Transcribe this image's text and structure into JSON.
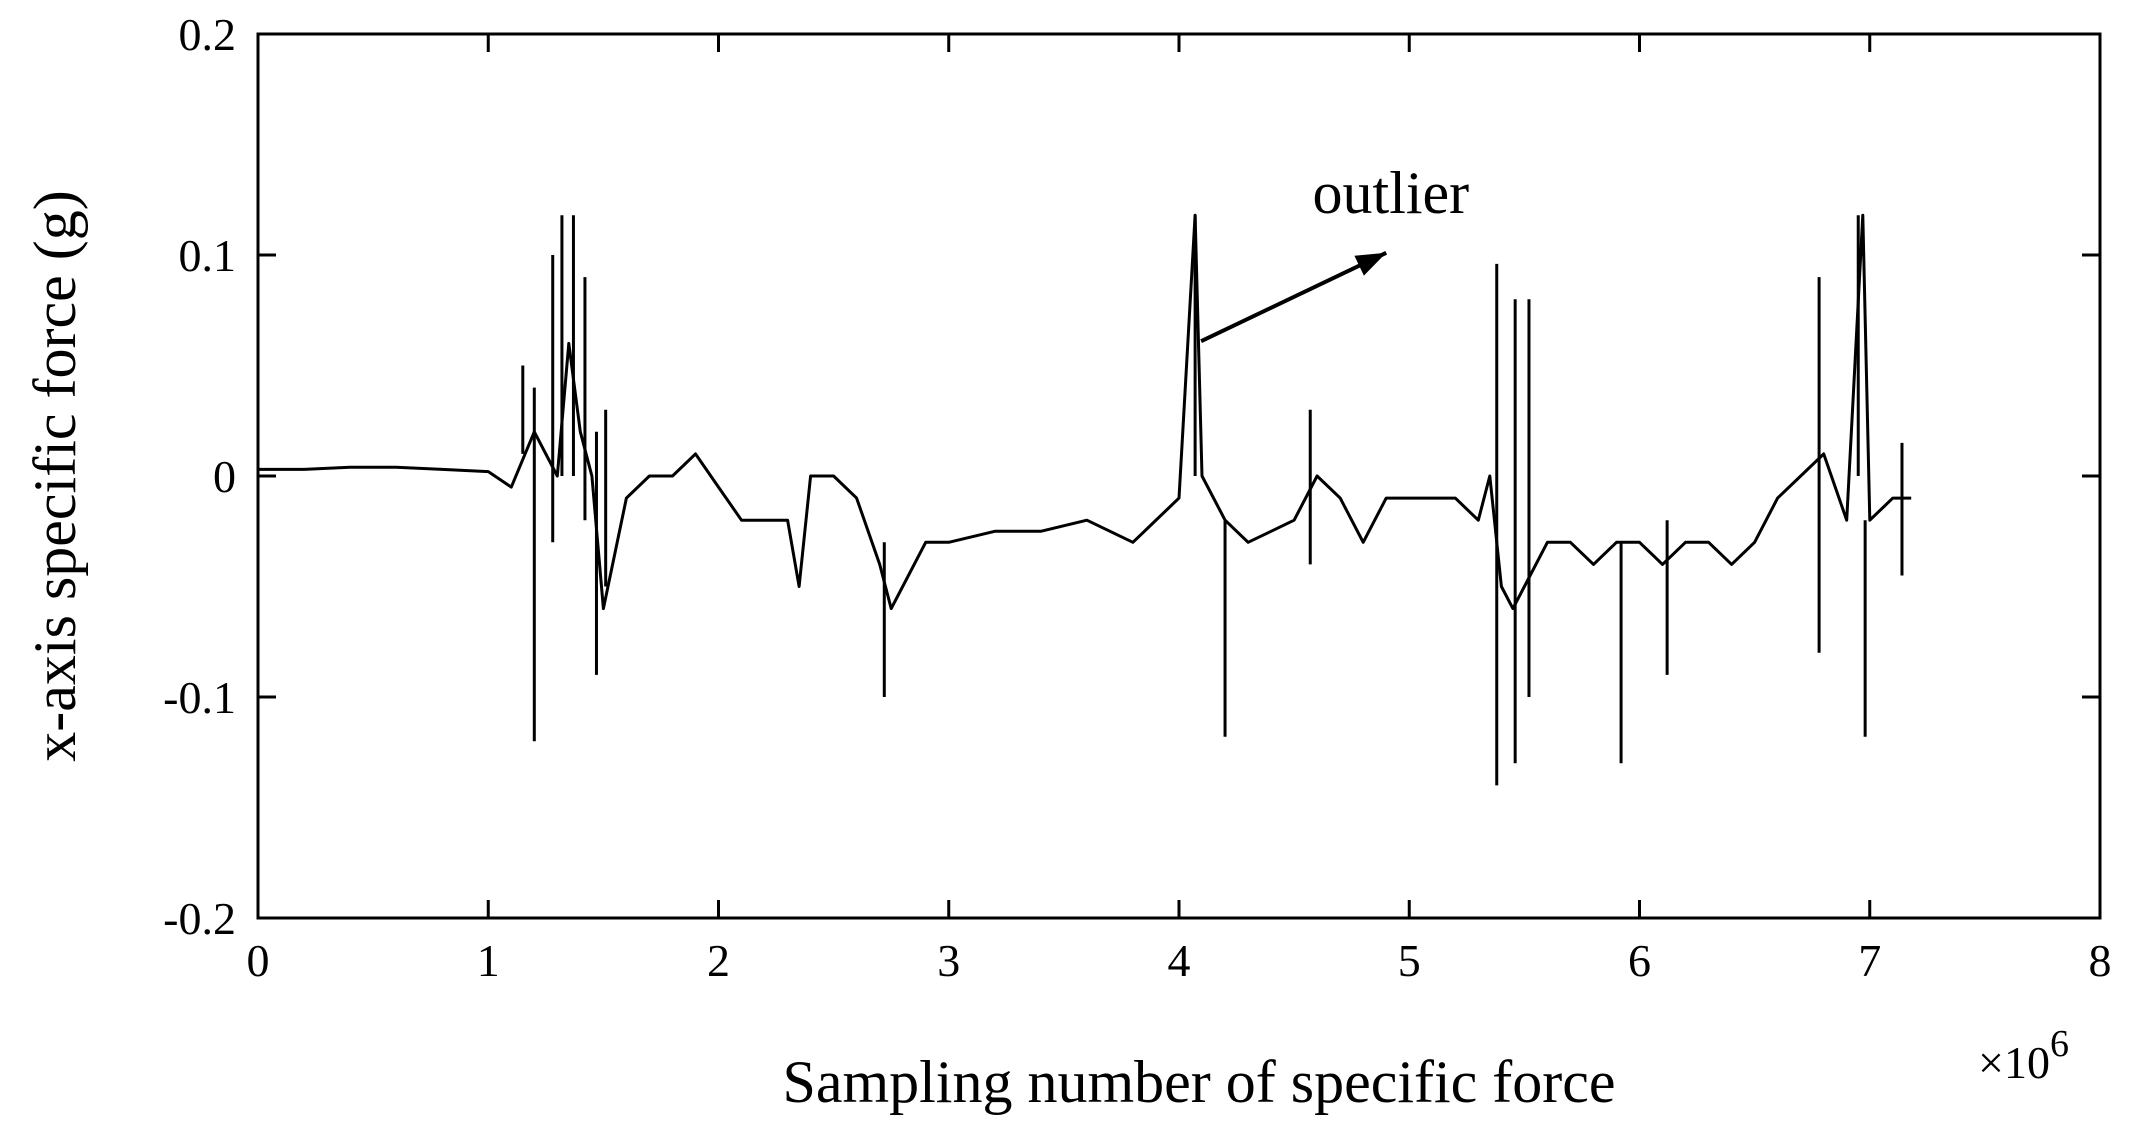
{
  "chart_data": {
    "type": "line",
    "xlabel": "Sampling number of specific force",
    "ylabel": "x-axis specific force (g)",
    "x_multiplier_base": "×10",
    "x_multiplier_exp": "6",
    "xlim": [
      0,
      8
    ],
    "ylim": [
      -0.2,
      0.2
    ],
    "x_ticks": [
      0,
      1,
      2,
      3,
      4,
      5,
      6,
      7,
      8
    ],
    "x_tick_labels": [
      "0",
      "1",
      "2",
      "3",
      "4",
      "5",
      "6",
      "7",
      "8"
    ],
    "y_ticks": [
      -0.2,
      -0.1,
      0,
      0.1,
      0.2
    ],
    "y_tick_labels": [
      "-0.2",
      "-0.1",
      "0",
      "0.1",
      "0.2"
    ],
    "grid": false,
    "line_color": "#000000",
    "annotation": {
      "text": "outlier",
      "target": [
        4.07,
        0.118
      ]
    },
    "series": [
      {
        "x": [
          0,
          0.2,
          0.4,
          0.6,
          0.8,
          1.0,
          1.1,
          1.2,
          1.3,
          1.35,
          1.4,
          1.45,
          1.5,
          1.6,
          1.7,
          1.8,
          1.9,
          2.0,
          2.1,
          2.2,
          2.3,
          2.35,
          2.4,
          2.5,
          2.6,
          2.7,
          2.75,
          2.8,
          2.9,
          3.0,
          3.2,
          3.4,
          3.6,
          3.8,
          4.0,
          4.07,
          4.1,
          4.2,
          4.3,
          4.4,
          4.5,
          4.6,
          4.7,
          4.8,
          4.9,
          5.0,
          5.1,
          5.2,
          5.3,
          5.35,
          5.4,
          5.45,
          5.5,
          5.6,
          5.7,
          5.8,
          5.9,
          6.0,
          6.1,
          6.2,
          6.3,
          6.4,
          6.5,
          6.6,
          6.7,
          6.8,
          6.9,
          6.97,
          7.0,
          7.1,
          7.18
        ],
        "y": [
          0.003,
          0.003,
          0.004,
          0.004,
          0.003,
          0.002,
          -0.005,
          0.02,
          0.0,
          0.06,
          0.02,
          0.0,
          -0.06,
          -0.01,
          0.0,
          0.0,
          0.01,
          -0.005,
          -0.02,
          -0.02,
          -0.02,
          -0.05,
          0.0,
          0.0,
          -0.01,
          -0.04,
          -0.06,
          -0.05,
          -0.03,
          -0.03,
          -0.025,
          -0.025,
          -0.02,
          -0.03,
          -0.01,
          0.118,
          0.0,
          -0.02,
          -0.03,
          -0.025,
          -0.02,
          0.0,
          -0.01,
          -0.03,
          -0.01,
          -0.01,
          -0.01,
          -0.01,
          -0.02,
          0.0,
          -0.05,
          -0.06,
          -0.05,
          -0.03,
          -0.03,
          -0.04,
          -0.03,
          -0.03,
          -0.04,
          -0.03,
          -0.03,
          -0.04,
          -0.03,
          -0.01,
          0.0,
          0.01,
          -0.02,
          0.118,
          -0.02,
          -0.01,
          -0.01
        ]
      }
    ],
    "spikes": [
      [
        1.15,
        0.01,
        0.05
      ],
      [
        1.2,
        -0.12,
        0.04
      ],
      [
        1.28,
        -0.03,
        0.1
      ],
      [
        1.32,
        0.0,
        0.118
      ],
      [
        1.37,
        0.0,
        0.118
      ],
      [
        1.42,
        -0.02,
        0.09
      ],
      [
        1.47,
        -0.09,
        0.02
      ],
      [
        1.51,
        -0.05,
        0.03
      ],
      [
        2.72,
        -0.1,
        -0.03
      ],
      [
        4.07,
        0.0,
        0.118
      ],
      [
        4.2,
        -0.118,
        -0.02
      ],
      [
        4.57,
        -0.04,
        0.03
      ],
      [
        5.38,
        -0.14,
        0.096
      ],
      [
        5.46,
        -0.13,
        0.08
      ],
      [
        5.52,
        -0.1,
        0.08
      ],
      [
        5.92,
        -0.13,
        -0.03
      ],
      [
        6.12,
        -0.09,
        -0.02
      ],
      [
        6.78,
        -0.08,
        0.09
      ],
      [
        6.95,
        0.0,
        0.118
      ],
      [
        6.98,
        -0.118,
        -0.02
      ],
      [
        7.14,
        -0.045,
        0.015
      ]
    ]
  }
}
